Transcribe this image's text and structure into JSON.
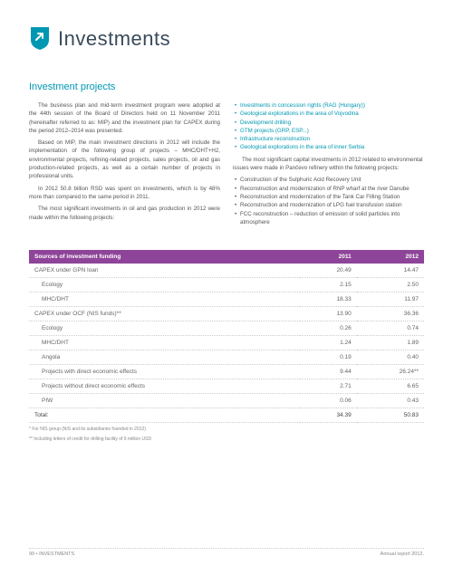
{
  "header": {
    "title": "Investments",
    "icon_color": "#0097b2",
    "arrow_color": "#ffffff"
  },
  "section": {
    "title": "Investment projects"
  },
  "leftCol": {
    "p1": "The business plan and mid-term investment program were adopted at the 44th session of the Board of Directors held on 11 November 2011 (hereinafter referred to as: MIP) and the investment plan for CAPEX during the period 2012–2014 was presented.",
    "p2": "Based on MIP, the main investment directions in 2012 will include the implementation of the following group of projects – MHC/DHT+H2, environmental projects, refining-related projects, sales projects, oil and gas production-related projects, as well as a certain number of projects in professional units.",
    "p3": "In 2012 50.8 billion RSD was spent on investments, which is by 48% more than compared to the same period in 2011.",
    "p4": "The most significant investments in oil and gas production in 2012 were made within the following projects:"
  },
  "rightCol": {
    "bullets1": [
      "Investments in concession rights (RAG (Hungary))",
      "Geological explorations in the area of Vojvodina",
      "Development drilling",
      "GTM projects (GRP, ESP...)",
      "Infrastructure reconstruction",
      "Geological explorations in the area of inner Serbia"
    ],
    "intro2": "The most significant capital investments in 2012 related to environmental issues were made in Pančevo refinery within the following projects:",
    "bullets2": [
      "Construction of the Sulphuric Acid Recovery Unit",
      "Reconstruction and modernization of RNP wharf at the river Danube",
      "Reconstruction and modernization of the Tank Car Filling Station",
      "Reconstruction and modernization of LPG fuel transfusion station",
      "FCC reconstruction – reduction of emission of solid particles into atmosphere"
    ]
  },
  "table": {
    "title": "Sources of investment funding",
    "col1": "2011",
    "col2": "2012",
    "header_bg": "#8e4599",
    "header_fg": "#ffffff",
    "rows": [
      {
        "label": "CAPEX under GPN loan",
        "v1": "20.49",
        "v2": "14.47",
        "sub": false
      },
      {
        "label": "Ecology",
        "v1": "2.15",
        "v2": "2.50",
        "sub": true
      },
      {
        "label": "MHC/DHT",
        "v1": "18.33",
        "v2": "11.97",
        "sub": true
      },
      {
        "label": "CAPEX under OCF (NIS funds)**",
        "v1": "13.90",
        "v2": "36.36",
        "sub": false
      },
      {
        "label": "Ecology",
        "v1": "0.26",
        "v2": "0.74",
        "sub": true
      },
      {
        "label": "MHC/DHT",
        "v1": "1.24",
        "v2": "1.89",
        "sub": true
      },
      {
        "label": "Angola",
        "v1": "0.19",
        "v2": "0.40",
        "sub": true
      },
      {
        "label": "Projects with direct economic effects",
        "v1": "9.44",
        "v2": "26.24**",
        "sub": true
      },
      {
        "label": "Projects without direct economic effects",
        "v1": "2.71",
        "v2": "6.65",
        "sub": true
      },
      {
        "label": "PIW",
        "v1": "0.06",
        "v2": "0.43",
        "sub": true
      },
      {
        "label": "Total:",
        "v1": "34.39",
        "v2": "50.83",
        "sub": false,
        "total": true
      }
    ]
  },
  "footnotes": {
    "n1": "* For NIS group (NIS and its subsidiaries founded in 2012)",
    "n2": "** Including letters of credit for drilling facility of 9 million USD"
  },
  "footer": {
    "left": "90  •  INVESTMENTS",
    "right": "Annual report 2012."
  }
}
